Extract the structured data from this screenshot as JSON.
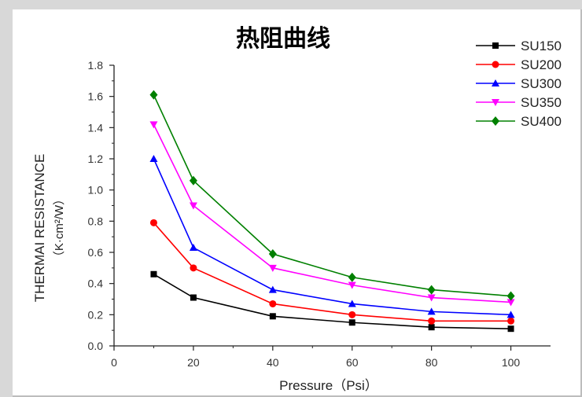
{
  "chart_data": {
    "type": "line",
    "title": "热阻曲线",
    "xlabel": "Pressure（Psi）",
    "ylabel": "THERMAI RESISTANCE",
    "ylabel_unit": "（K·cm²/W）",
    "xlim": [
      0,
      110
    ],
    "ylim": [
      0,
      1.8
    ],
    "xticks": [
      0,
      20,
      40,
      60,
      80,
      100
    ],
    "yticks": [
      "0.0",
      "0.2",
      "0.4",
      "0.6",
      "0.8",
      "1.0",
      "1.2",
      "1.4",
      "1.6",
      "1.8"
    ],
    "legend_position": "top-right",
    "x": [
      10,
      20,
      40,
      60,
      80,
      100
    ],
    "series": [
      {
        "name": "SU150",
        "color": "#000000",
        "marker": "square",
        "values": [
          0.46,
          0.31,
          0.19,
          0.15,
          0.12,
          0.11
        ]
      },
      {
        "name": "SU200",
        "color": "#ff0000",
        "marker": "circle",
        "values": [
          0.79,
          0.5,
          0.27,
          0.2,
          0.16,
          0.16
        ]
      },
      {
        "name": "SU300",
        "color": "#0000ff",
        "marker": "triangle-up",
        "values": [
          1.2,
          0.63,
          0.36,
          0.27,
          0.22,
          0.2
        ]
      },
      {
        "name": "SU350",
        "color": "#ff00ff",
        "marker": "triangle-down",
        "values": [
          1.42,
          0.9,
          0.5,
          0.39,
          0.31,
          0.28
        ]
      },
      {
        "name": "SU400",
        "color": "#008000",
        "marker": "diamond",
        "values": [
          1.61,
          1.06,
          0.59,
          0.44,
          0.36,
          0.32
        ]
      }
    ]
  }
}
